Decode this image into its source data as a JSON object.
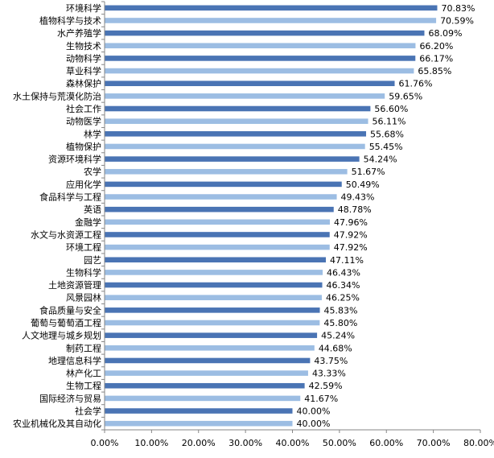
{
  "chart_data": {
    "type": "bar",
    "orientation": "horizontal",
    "categories": [
      "环境科学",
      "植物科学与技术",
      "水产养殖学",
      "生物技术",
      "动物科学",
      "草业科学",
      "森林保护",
      "水土保持与荒漠化防治",
      "社会工作",
      "动物医学",
      "林学",
      "植物保护",
      "资源环境科学",
      "农学",
      "应用化学",
      "食品科学与工程",
      "英语",
      "金融学",
      "水文与水资源工程",
      "环境工程",
      "园艺",
      "生物科学",
      "土地资源管理",
      "风景园林",
      "食品质量与安全",
      "葡萄与葡萄酒工程",
      "人文地理与城乡规划",
      "制药工程",
      "地理信息科学",
      "林产化工",
      "生物工程",
      "国际经济与贸易",
      "社会学",
      "农业机械化及其自动化"
    ],
    "values": [
      70.83,
      70.59,
      68.09,
      66.2,
      66.17,
      65.85,
      61.76,
      59.65,
      56.6,
      56.11,
      55.68,
      55.45,
      54.24,
      51.67,
      50.49,
      49.43,
      48.78,
      47.96,
      47.92,
      47.92,
      47.11,
      46.43,
      46.34,
      46.25,
      45.83,
      45.8,
      45.24,
      44.68,
      43.75,
      43.33,
      42.59,
      41.67,
      40.0,
      40.0
    ],
    "value_labels": [
      "70.83%",
      "70.59%",
      "68.09%",
      "66.20%",
      "66.17%",
      "65.85%",
      "61.76%",
      "59.65%",
      "56.60%",
      "56.11%",
      "55.68%",
      "55.45%",
      "54.24%",
      "51.67%",
      "50.49%",
      "49.43%",
      "48.78%",
      "47.96%",
      "47.92%",
      "47.92%",
      "47.11%",
      "46.43%",
      "46.34%",
      "46.25%",
      "45.83%",
      "45.80%",
      "45.24%",
      "44.68%",
      "43.75%",
      "43.33%",
      "42.59%",
      "41.67%",
      "40.00%",
      "40.00%"
    ],
    "xlim": [
      0,
      80
    ],
    "x_ticks": [
      0,
      10,
      20,
      30,
      40,
      50,
      60,
      70,
      80
    ],
    "x_tick_labels": [
      "0.00%",
      "10.00%",
      "20.00%",
      "30.00%",
      "40.00%",
      "50.00%",
      "60.00%",
      "70.00%",
      "80.00%"
    ],
    "title": "",
    "xlabel": "",
    "ylabel": "",
    "grid": false,
    "legend": "none",
    "colors": {
      "bar_dark": "#4a74b4",
      "bar_light": "#9cbde3",
      "axis": "#868686"
    }
  }
}
